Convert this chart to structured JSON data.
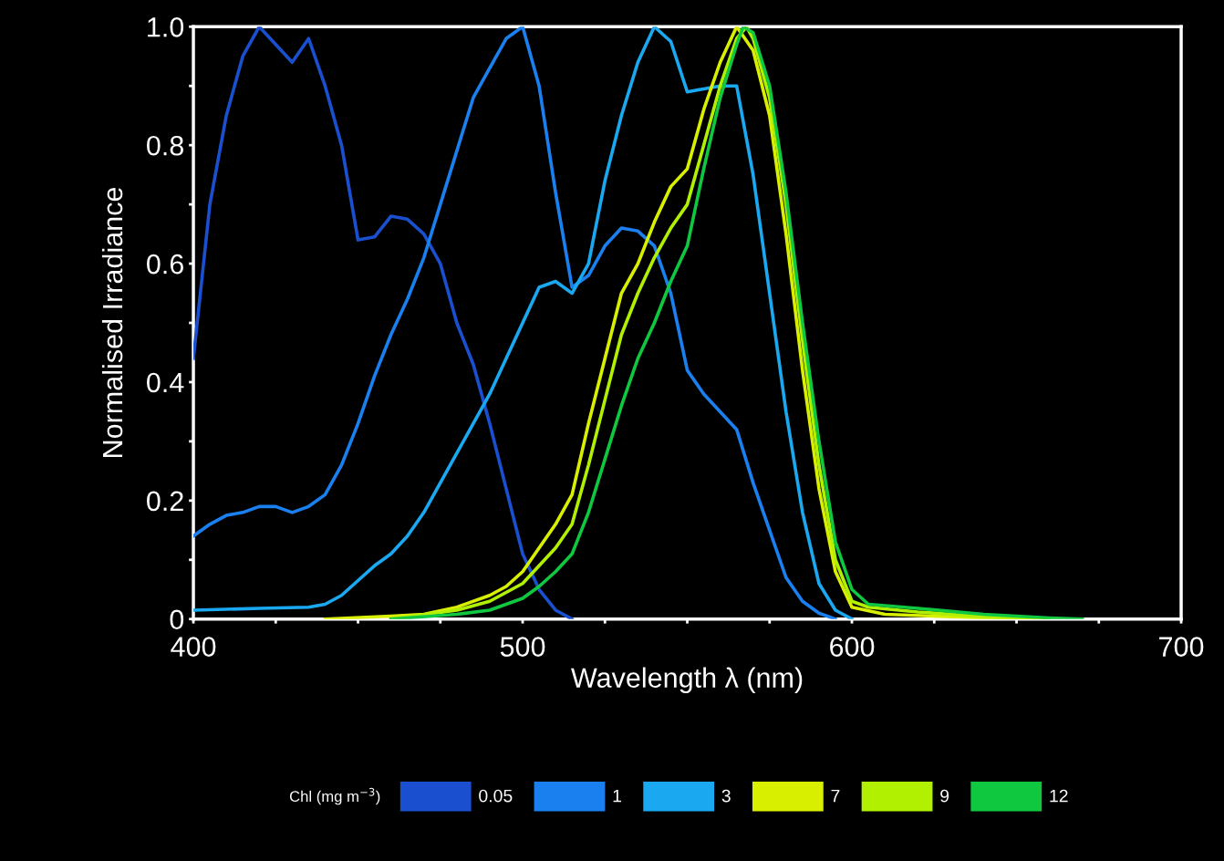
{
  "chart_data": {
    "type": "line",
    "xlabel": "Wavelength λ (nm)",
    "ylabel": "Normalised Irradiance",
    "legend_title": "Chl (mg m$^{−3}$)",
    "legend": "bottom",
    "grid": false,
    "marker": "none",
    "line_style": "solid",
    "xlim": [
      400,
      700
    ],
    "ylim": [
      0,
      1.0
    ],
    "xticks": [
      400,
      {
        "value": 425,
        "label": null
      },
      {
        "value": 450,
        "label": null
      },
      {
        "value": 475,
        "label": null
      },
      500,
      {
        "value": 525,
        "label": null
      },
      {
        "value": 550,
        "label": null
      },
      {
        "value": 575,
        "label": null
      },
      600,
      {
        "value": 625,
        "label": null
      },
      {
        "value": 650,
        "label": null
      },
      {
        "value": 675,
        "label": null
      },
      700
    ],
    "yticks": [
      0,
      {
        "value": 0.1,
        "label": null
      },
      0.2,
      {
        "value": 0.3,
        "label": null
      },
      0.4,
      {
        "value": 0.5,
        "label": null
      },
      0.6,
      {
        "value": 0.7,
        "label": null
      },
      0.8,
      {
        "value": 0.9,
        "label": null
      },
      {
        "value": 1.0,
        "label": "1.0"
      }
    ],
    "series": [
      {
        "name": "0.05",
        "color": "#1a50d0",
        "x": [
          400,
          405,
          410,
          415,
          420,
          425,
          430,
          435,
          440,
          445,
          450,
          455,
          460,
          465,
          470,
          475,
          480,
          485,
          490,
          495,
          500,
          505,
          510,
          515
        ],
        "values": [
          0.44,
          0.7,
          0.85,
          0.95,
          1.0,
          0.97,
          0.94,
          0.98,
          0.9,
          0.8,
          0.64,
          0.645,
          0.68,
          0.675,
          0.65,
          0.6,
          0.5,
          0.43,
          0.33,
          0.22,
          0.11,
          0.05,
          0.015,
          0
        ]
      },
      {
        "name": "1",
        "color": "#1a80f0",
        "x": [
          400,
          405,
          410,
          415,
          420,
          425,
          430,
          435,
          440,
          445,
          450,
          455,
          460,
          465,
          470,
          475,
          480,
          485,
          490,
          495,
          500,
          505,
          510,
          515,
          520,
          525,
          530,
          535,
          540,
          545,
          550,
          555,
          560,
          565,
          570,
          575,
          580,
          585,
          590,
          595
        ],
        "values": [
          0.14,
          0.16,
          0.175,
          0.18,
          0.19,
          0.19,
          0.18,
          0.19,
          0.21,
          0.26,
          0.33,
          0.41,
          0.48,
          0.54,
          0.61,
          0.7,
          0.79,
          0.88,
          0.93,
          0.98,
          1.0,
          0.9,
          0.72,
          0.56,
          0.58,
          0.63,
          0.66,
          0.655,
          0.63,
          0.55,
          0.42,
          0.38,
          0.35,
          0.32,
          0.23,
          0.15,
          0.07,
          0.03,
          0.01,
          0
        ]
      },
      {
        "name": "3",
        "color": "#1aa8f0",
        "x": [
          400,
          420,
          435,
          440,
          445,
          450,
          455,
          460,
          465,
          470,
          475,
          480,
          485,
          490,
          495,
          500,
          505,
          510,
          515,
          520,
          525,
          530,
          535,
          540,
          545,
          550,
          555,
          560,
          565,
          570,
          575,
          580,
          585,
          590,
          595,
          600
        ],
        "values": [
          0.015,
          0.018,
          0.02,
          0.025,
          0.04,
          0.065,
          0.09,
          0.11,
          0.14,
          0.18,
          0.23,
          0.28,
          0.33,
          0.38,
          0.44,
          0.5,
          0.56,
          0.57,
          0.55,
          0.6,
          0.74,
          0.85,
          0.94,
          1.0,
          0.975,
          0.89,
          0.895,
          0.9,
          0.9,
          0.75,
          0.55,
          0.35,
          0.18,
          0.06,
          0.015,
          0
        ]
      },
      {
        "name": "7",
        "color": "#d8f000",
        "x": [
          440,
          460,
          470,
          480,
          490,
          495,
          500,
          505,
          510,
          515,
          520,
          525,
          530,
          535,
          540,
          545,
          550,
          555,
          560,
          565,
          570,
          575,
          580,
          585,
          590,
          595,
          600,
          610,
          640,
          660
        ],
        "values": [
          0,
          0.005,
          0.008,
          0.02,
          0.04,
          0.055,
          0.08,
          0.12,
          0.16,
          0.21,
          0.33,
          0.44,
          0.55,
          0.6,
          0.67,
          0.73,
          0.76,
          0.86,
          0.94,
          1.0,
          0.96,
          0.85,
          0.65,
          0.42,
          0.22,
          0.08,
          0.02,
          0.008,
          0.002,
          0
        ]
      },
      {
        "name": "9",
        "color": "#b0f000",
        "x": [
          460,
          480,
          490,
          500,
          505,
          510,
          515,
          520,
          525,
          530,
          535,
          540,
          545,
          550,
          555,
          560,
          565,
          568,
          570,
          575,
          580,
          585,
          590,
          595,
          600,
          605,
          620,
          640,
          660
        ],
        "values": [
          0,
          0.015,
          0.03,
          0.06,
          0.09,
          0.12,
          0.16,
          0.26,
          0.37,
          0.48,
          0.55,
          0.61,
          0.66,
          0.7,
          0.8,
          0.9,
          0.98,
          1.0,
          0.98,
          0.88,
          0.7,
          0.47,
          0.26,
          0.1,
          0.03,
          0.02,
          0.012,
          0.004,
          0
        ]
      },
      {
        "name": "12",
        "color": "#10c840",
        "x": [
          460,
          480,
          490,
          500,
          505,
          510,
          515,
          520,
          525,
          530,
          535,
          540,
          545,
          550,
          555,
          560,
          565,
          567,
          570,
          575,
          580,
          585,
          590,
          595,
          600,
          605,
          620,
          640,
          660,
          670
        ],
        "values": [
          0,
          0.008,
          0.015,
          0.035,
          0.055,
          0.08,
          0.11,
          0.18,
          0.27,
          0.36,
          0.44,
          0.5,
          0.57,
          0.63,
          0.76,
          0.88,
          0.97,
          1.0,
          0.99,
          0.9,
          0.72,
          0.5,
          0.3,
          0.13,
          0.05,
          0.025,
          0.018,
          0.008,
          0.002,
          0
        ]
      }
    ]
  }
}
